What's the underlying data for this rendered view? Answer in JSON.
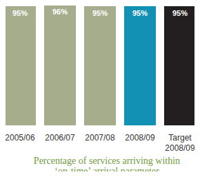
{
  "chart_data": {
    "type": "bar",
    "title": "Percentage of services arriving within ‘on-time’ arrival parameter",
    "categories": [
      "2005/06",
      "2006/07",
      "2007/08",
      "2008/09",
      "Target 2008/09"
    ],
    "values": [
      95,
      96,
      95,
      95,
      95
    ],
    "value_labels": [
      "95%",
      "96%",
      "95%",
      "95%",
      "95%"
    ],
    "colors": [
      "#a6ad8c",
      "#a6ad8c",
      "#a6ad8c",
      "#1291b5",
      "#231f20"
    ],
    "ylim": [
      0,
      100
    ],
    "data_labels": true,
    "tick_labels": "x"
  }
}
